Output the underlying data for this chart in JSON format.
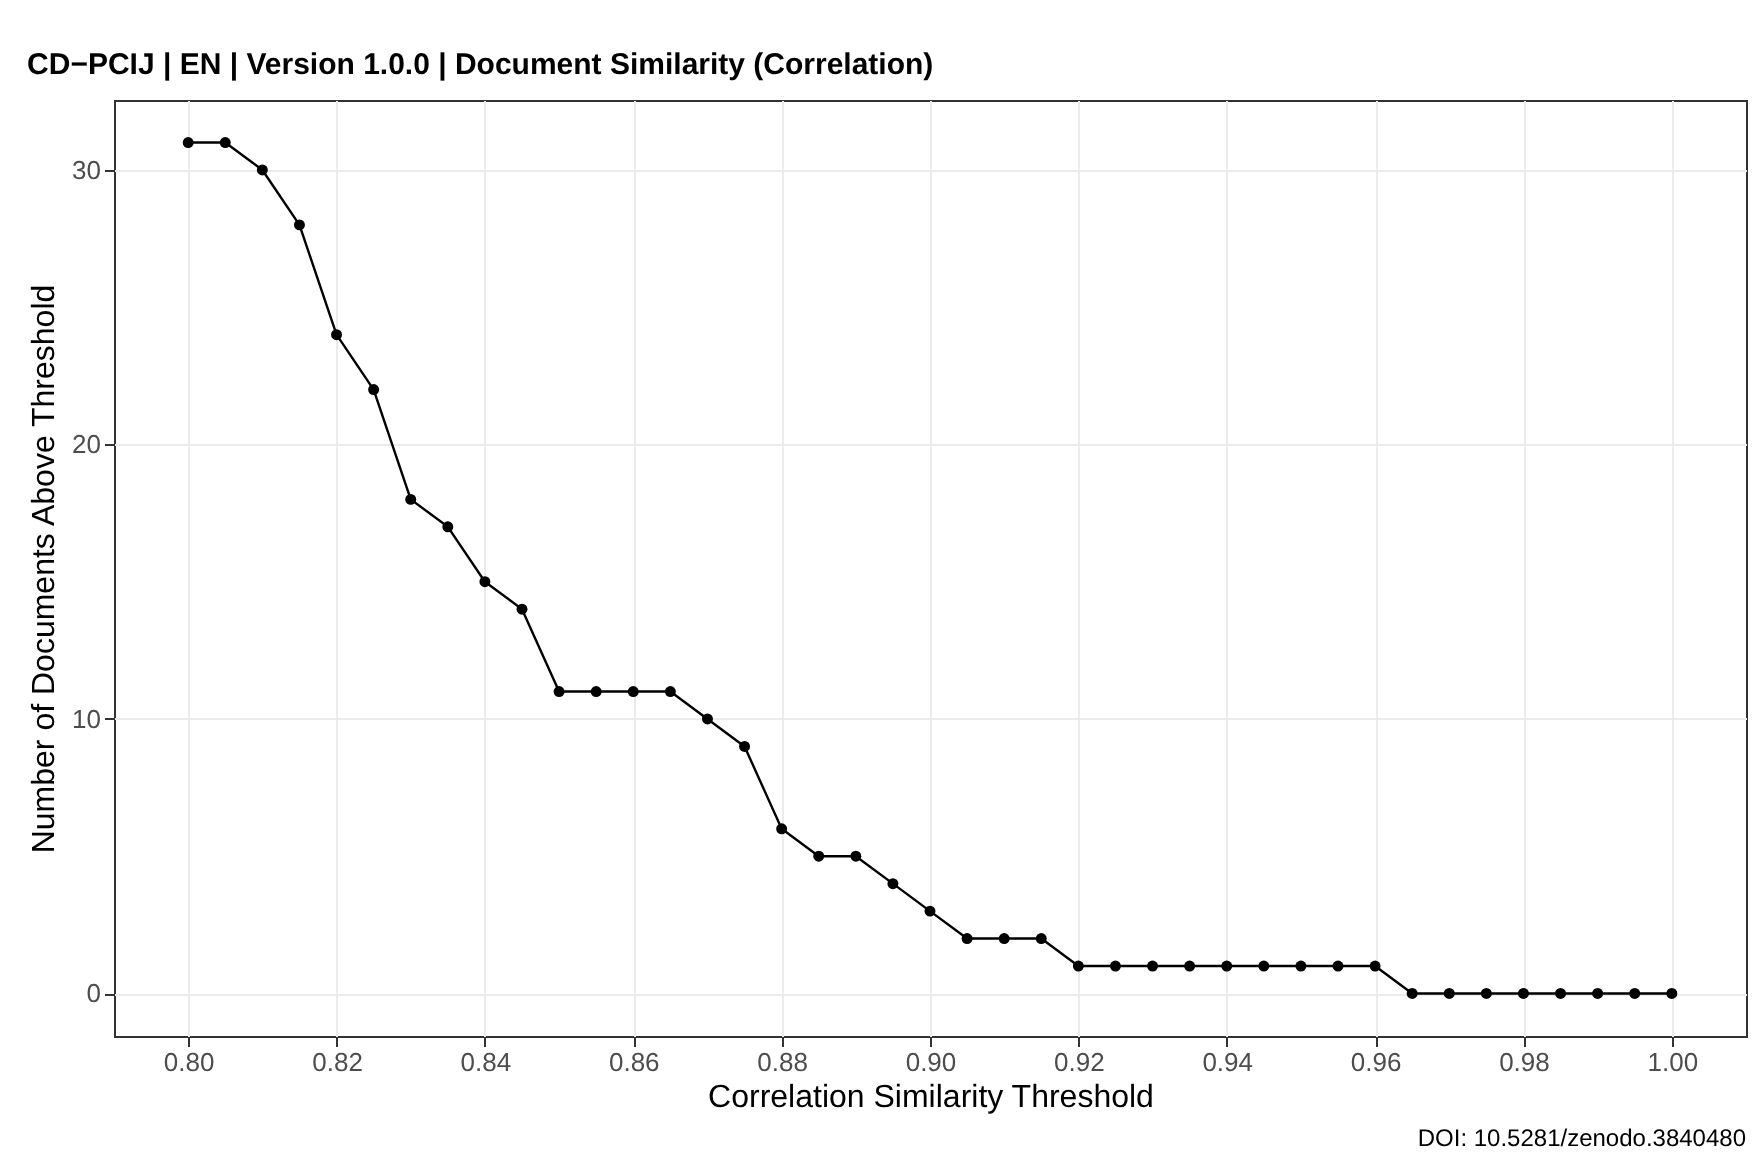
{
  "chart_data": {
    "type": "line",
    "title": "CD−PCIJ | EN | Version 1.0.0 | Document Similarity (Correlation)",
    "xlabel": "Correlation Similarity Threshold",
    "ylabel": "Number of Documents Above Threshold",
    "annotations": [
      "DOI: 10.5281/zenodo.3840480"
    ],
    "x": [
      0.8,
      0.805,
      0.81,
      0.815,
      0.82,
      0.825,
      0.83,
      0.835,
      0.84,
      0.845,
      0.85,
      0.855,
      0.86,
      0.865,
      0.87,
      0.875,
      0.88,
      0.885,
      0.89,
      0.895,
      0.9,
      0.905,
      0.91,
      0.915,
      0.92,
      0.925,
      0.93,
      0.935,
      0.94,
      0.945,
      0.95,
      0.955,
      0.96,
      0.965,
      0.97,
      0.975,
      0.98,
      0.985,
      0.99,
      0.995,
      1.0
    ],
    "series": [
      {
        "color": "#000000",
        "values": [
          31,
          31,
          30,
          28,
          24,
          22,
          18,
          17,
          15,
          14,
          11,
          11,
          11,
          11,
          10,
          9,
          6,
          5,
          5,
          4,
          3,
          2,
          2,
          2,
          1,
          1,
          1,
          1,
          1,
          1,
          1,
          1,
          1,
          0,
          0,
          0,
          0,
          0,
          0,
          0,
          0
        ]
      }
    ],
    "xlim": [
      0.79,
      1.01
    ],
    "xticks": [
      {
        "value": 0.8,
        "label": "0.80"
      },
      {
        "value": 0.82,
        "label": "0.82"
      },
      {
        "value": 0.84,
        "label": "0.84"
      },
      {
        "value": 0.86,
        "label": "0.86"
      },
      {
        "value": 0.88,
        "label": "0.88"
      },
      {
        "value": 0.9,
        "label": "0.90"
      },
      {
        "value": 0.92,
        "label": "0.92"
      },
      {
        "value": 0.94,
        "label": "0.94"
      },
      {
        "value": 0.96,
        "label": "0.96"
      },
      {
        "value": 0.98,
        "label": "0.98"
      },
      {
        "value": 1.0,
        "label": "1.00"
      }
    ],
    "ylim": [
      -1.55,
      32.55
    ],
    "yticks": [
      0,
      10,
      20,
      30
    ],
    "grid": true,
    "marker": "circle",
    "line_style": "solid"
  }
}
